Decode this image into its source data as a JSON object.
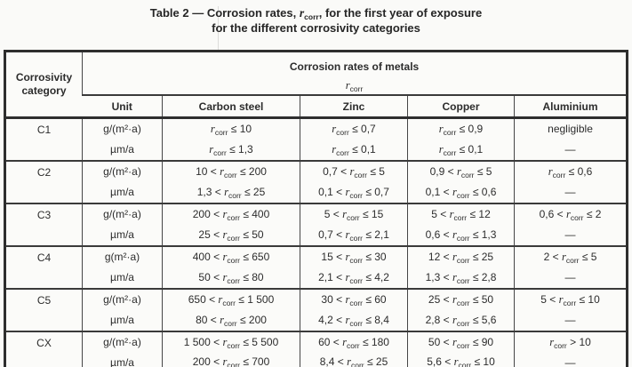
{
  "colors": {
    "background": "#fafaf8",
    "text": "#2a2a2a",
    "border_thick": "#2e2e2e",
    "border_thin": "#464646"
  },
  "title": {
    "line1_pre": "Table 2 — Corrosion rates, ",
    "r_var": "r",
    "r_sub": "corr",
    "line1_post": ", for the first year of exposure",
    "line2": "for the different corrosivity categories"
  },
  "table": {
    "corner_header": "Corrosivity category",
    "group_header": "Corrosion rates of metals",
    "group_symbol_var": "r",
    "group_symbol_sub": "corr",
    "columns": [
      "Unit",
      "Carbon steel",
      "Zinc",
      "Copper",
      "Aluminium"
    ],
    "rows": [
      {
        "category": "C1",
        "units": [
          "g/(m²·a)",
          "µm/a"
        ],
        "carbon_steel": [
          "r_corr ≤ 10",
          "r_corr ≤ 1,3"
        ],
        "zinc": [
          "r_corr ≤ 0,7",
          "r_corr ≤ 0,1"
        ],
        "copper": [
          "r_corr ≤ 0,9",
          "r_corr ≤ 0,1"
        ],
        "aluminium": [
          "negligible",
          "—"
        ]
      },
      {
        "category": "C2",
        "units": [
          "g/(m²·a)",
          "µm/a"
        ],
        "carbon_steel": [
          "10 < r_corr ≤ 200",
          "1,3 < r_corr ≤ 25"
        ],
        "zinc": [
          "0,7 < r_corr ≤ 5",
          "0,1 < r_corr ≤ 0,7"
        ],
        "copper": [
          "0,9 < r_corr ≤ 5",
          "0,1 < r_corr ≤ 0,6"
        ],
        "aluminium": [
          "r_corr ≤ 0,6",
          "—"
        ]
      },
      {
        "category": "C3",
        "units": [
          "g/(m²·a)",
          "µm/a"
        ],
        "carbon_steel": [
          "200 < r_corr ≤ 400",
          "25 < r_corr ≤ 50"
        ],
        "zinc": [
          "5 < r_corr ≤ 15",
          "0,7 < r_corr ≤ 2,1"
        ],
        "copper": [
          "5 < r_corr ≤ 12",
          "0,6 < r_corr ≤ 1,3"
        ],
        "aluminium": [
          "0,6 < r_corr ≤ 2",
          "—"
        ]
      },
      {
        "category": "C4",
        "units": [
          "g(m²·a)",
          "µm/a"
        ],
        "carbon_steel": [
          "400 < r_corr ≤ 650",
          "50 < r_corr ≤ 80"
        ],
        "zinc": [
          "15 < r_corr ≤ 30",
          "2,1 < r_corr ≤ 4,2"
        ],
        "copper": [
          "12 < r_corr ≤ 25",
          "1,3 < r_corr ≤ 2,8"
        ],
        "aluminium": [
          "2 < r_corr ≤ 5",
          "—"
        ]
      },
      {
        "category": "C5",
        "units": [
          "g/(m²·a)",
          "µm/a"
        ],
        "carbon_steel": [
          "650 < r_corr ≤ 1 500",
          "80 < r_corr ≤ 200"
        ],
        "zinc": [
          "30 < r_corr ≤ 60",
          "4,2 < r_corr ≤ 8,4"
        ],
        "copper": [
          "25 < r_corr ≤ 50",
          "2,8 < r_corr ≤ 5,6"
        ],
        "aluminium": [
          "5 < r_corr ≤ 10",
          "—"
        ]
      },
      {
        "category": "CX",
        "units": [
          "g/(m²·a)",
          "µm/a"
        ],
        "carbon_steel": [
          "1 500 < r_corr ≤ 5 500",
          "200 < r_corr ≤ 700"
        ],
        "zinc": [
          "60 < r_corr ≤ 180",
          "8,4 < r_corr ≤ 25"
        ],
        "copper": [
          "50 < r_corr ≤ 90",
          "5,6 < r_corr ≤ 10"
        ],
        "aluminium": [
          "r_corr > 10",
          "—"
        ]
      }
    ]
  }
}
